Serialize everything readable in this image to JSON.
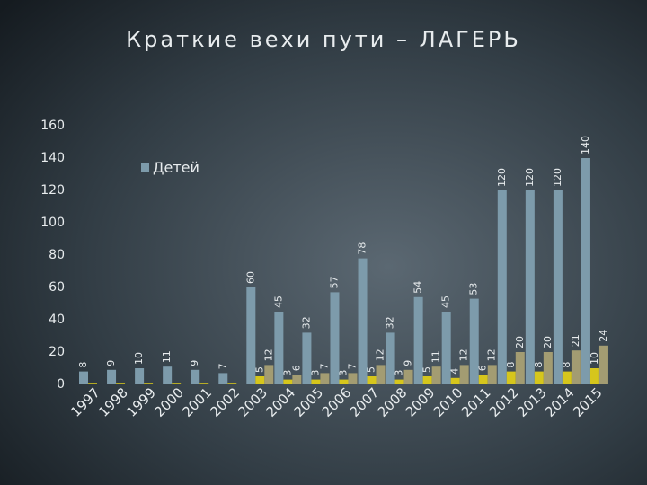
{
  "chart_data": {
    "type": "bar",
    "title": "Краткие вехи пути – ЛАГЕРЬ",
    "categories": [
      "1997",
      "1998",
      "1999",
      "2000",
      "2001",
      "2002",
      "2003",
      "2004",
      "2005",
      "2006",
      "2007",
      "2008",
      "2009",
      "2010",
      "2011",
      "2012",
      "2013",
      "2014",
      "2015"
    ],
    "series": [
      {
        "name": "Детей",
        "color": "#7d9bab",
        "values": [
          8,
          9,
          10,
          11,
          9,
          7,
          60,
          45,
          32,
          57,
          78,
          32,
          54,
          45,
          53,
          120,
          120,
          120,
          140
        ]
      },
      {
        "color": "#d6c61c",
        "values": [
          1,
          1,
          1,
          1,
          1,
          1,
          5,
          3,
          3,
          3,
          5,
          3,
          5,
          4,
          6,
          8,
          8,
          8,
          10
        ]
      },
      {
        "color": "#a39c72",
        "values": [
          null,
          null,
          null,
          null,
          null,
          null,
          12,
          6,
          7,
          7,
          12,
          9,
          11,
          12,
          12,
          20,
          20,
          21,
          24
        ]
      }
    ],
    "ylim": [
      0,
      160
    ],
    "yticks": [
      0,
      20,
      40,
      60,
      80,
      100,
      120,
      140,
      160
    ],
    "grid": false,
    "legend": "top-left"
  }
}
